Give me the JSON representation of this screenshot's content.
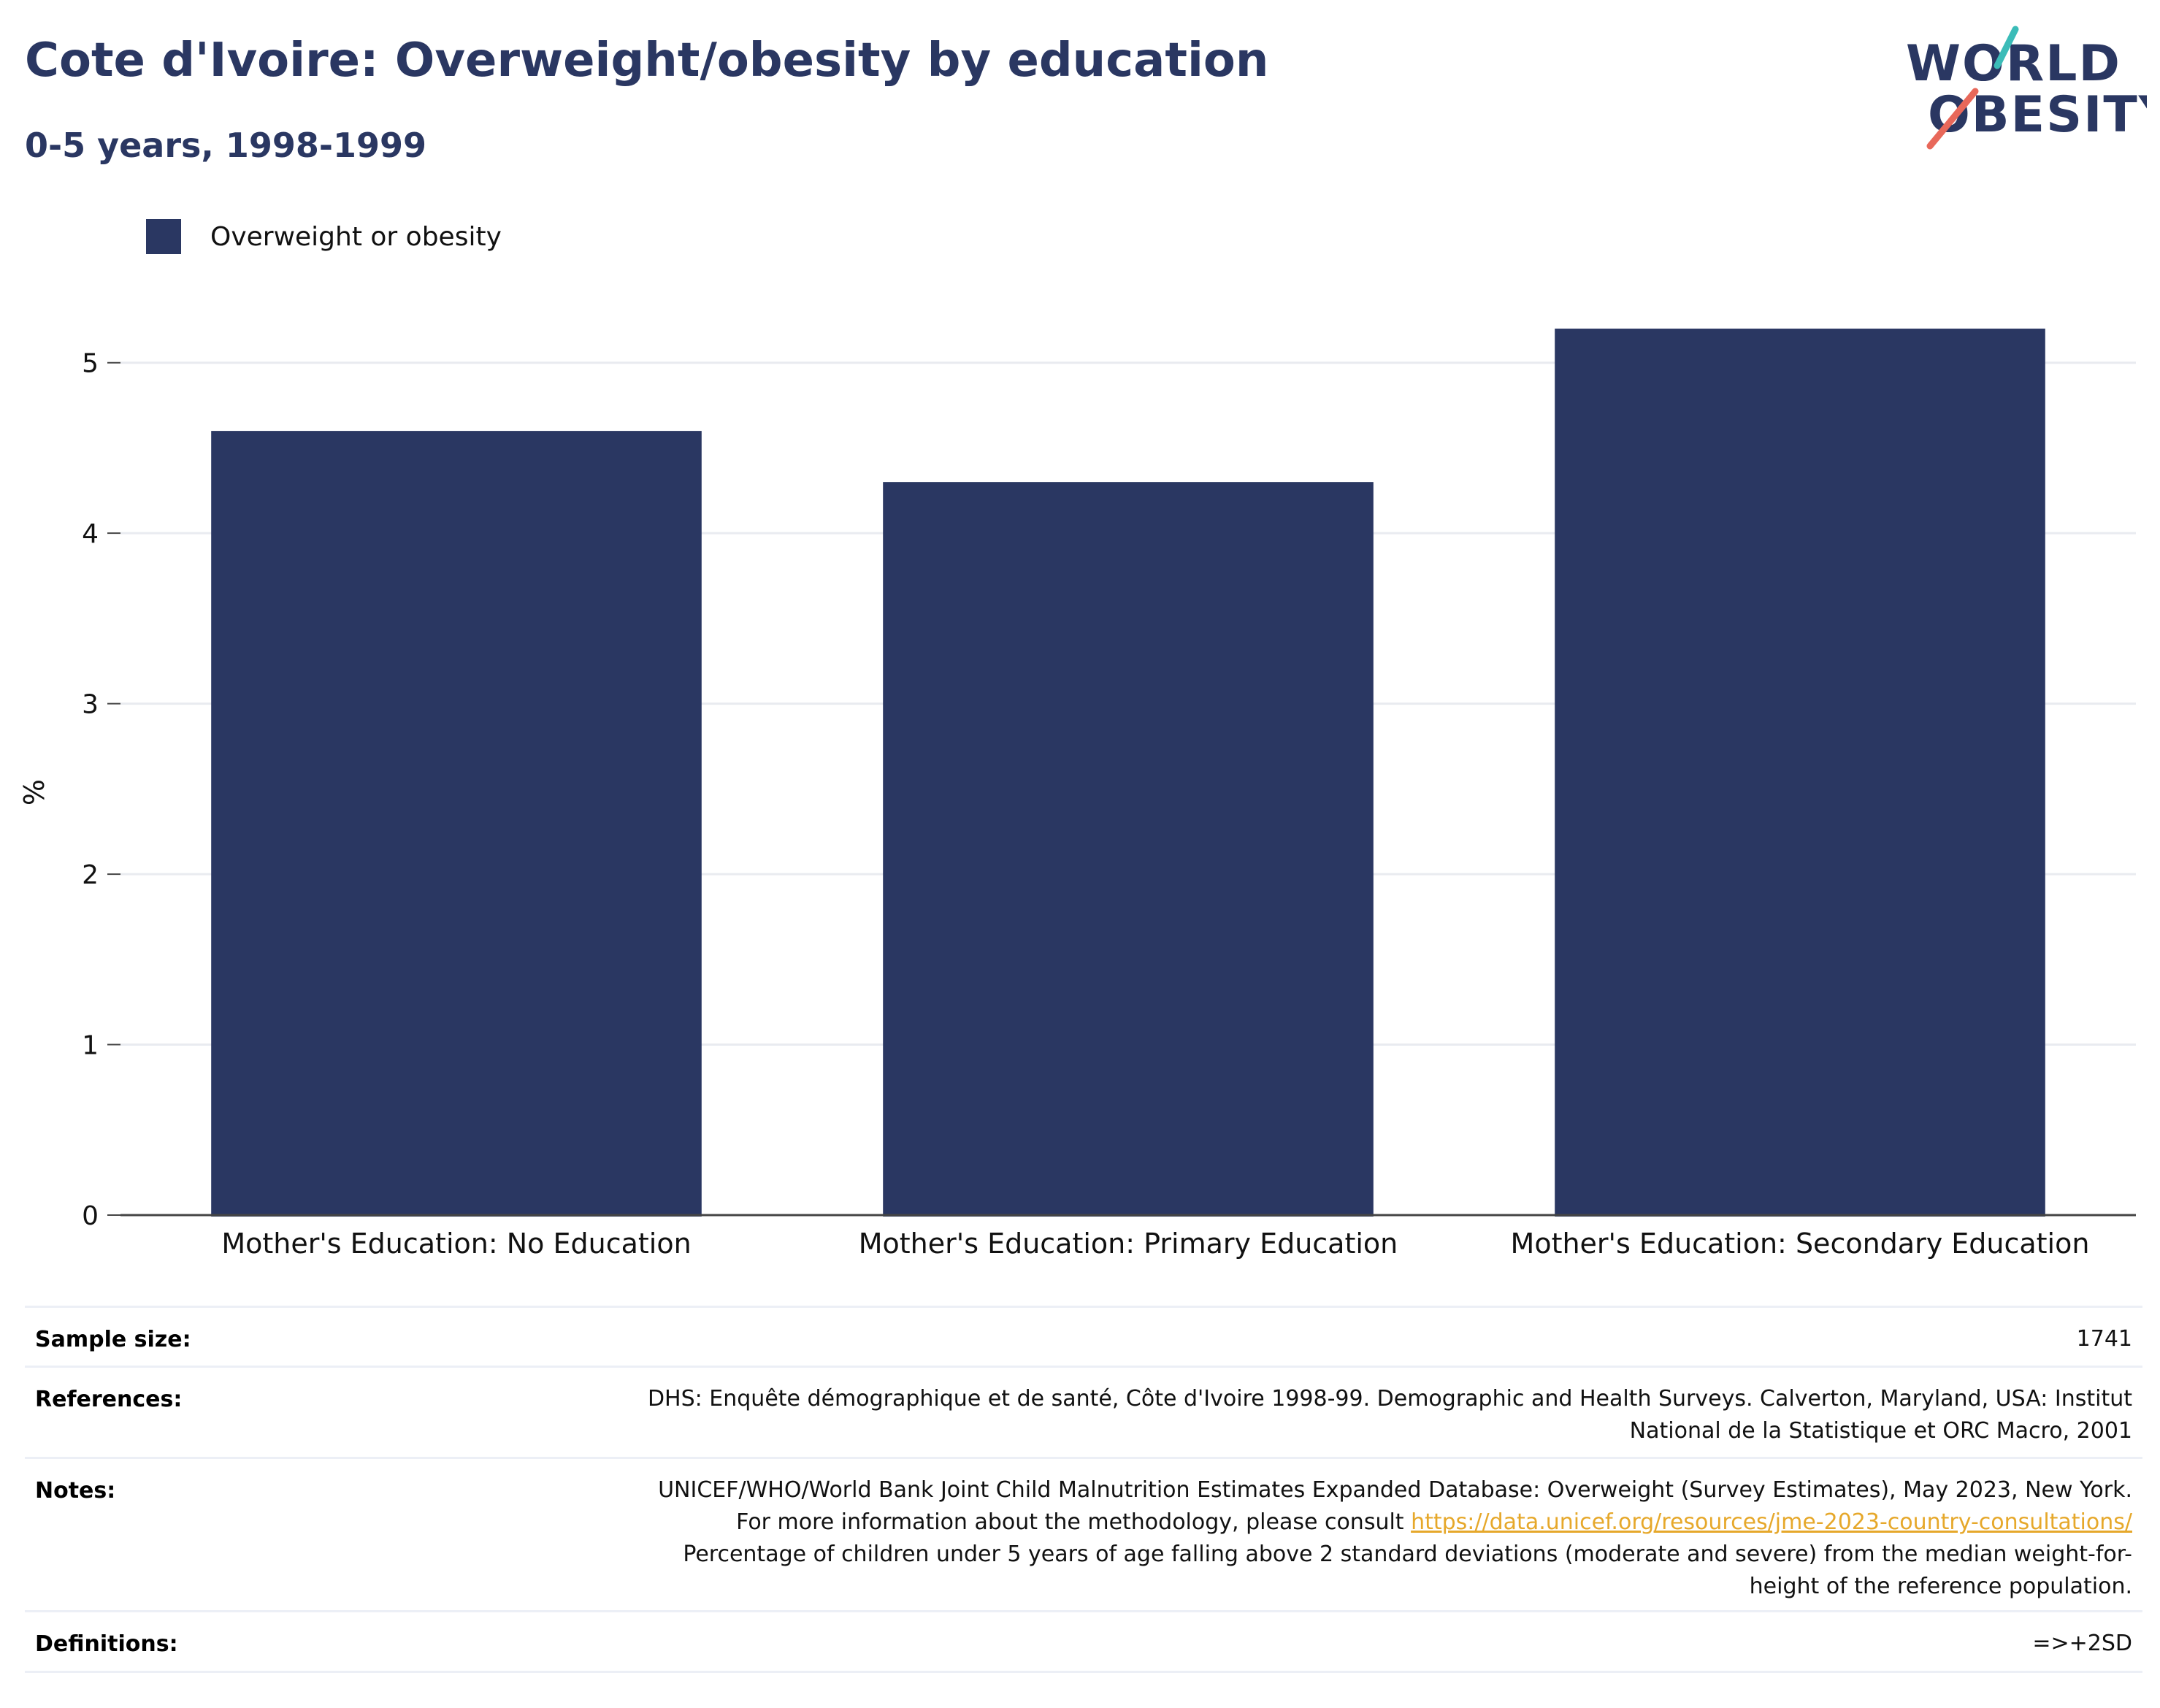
{
  "title": "Cote d'Ivoire: Overweight/obesity by education",
  "subtitle": "0-5 years, 1998-1999",
  "logo": {
    "line1": "WORLD",
    "line2": "OBESITY"
  },
  "colors": {
    "bar": "#2a3762",
    "title": "#2a3762",
    "link": "#e6a82b",
    "logo_teal": "#3bbcb8",
    "logo_coral": "#e8685a"
  },
  "chart_data": {
    "type": "bar",
    "categories": [
      "Mother's Education: No Education",
      "Mother's Education: Primary Education",
      "Mother's Education: Secondary Education"
    ],
    "series": [
      {
        "name": "Overweight or obesity",
        "values": [
          4.6,
          4.3,
          5.2
        ]
      }
    ],
    "title": "Cote d'Ivoire: Overweight/obesity by education",
    "subtitle": "0-5 years, 1998-1999",
    "xlabel": "",
    "ylabel": "%",
    "ylim": [
      0,
      5.5
    ],
    "yticks": [
      0,
      1,
      2,
      3,
      4,
      5
    ],
    "grid": true,
    "legend": "top-left"
  },
  "info": {
    "sample_size_label": "Sample size:",
    "sample_size_value": "1741",
    "references_label": "References:",
    "references_value": "DHS: Enquête démographique et de santé, Côte d'Ivoire 1998-99. Demographic and Health Surveys. Calverton, Maryland, USA: Institut National de la Statistique et ORC Macro, 2001",
    "notes_label": "Notes:",
    "notes_text1": "UNICEF/WHO/World Bank Joint Child Malnutrition Estimates Expanded Database: Overweight (Survey Estimates), May 2023, New York. For more information about the methodology, please consult ",
    "notes_link": "https://data.unicef.org/resources/jme-2023-country-consultations/",
    "notes_text2": " Percentage of children under 5 years of age falling above 2 standard deviations (moderate and severe) from the median weight-for-height of the reference population.",
    "definitions_label": "Definitions:",
    "definitions_value": "=>+2SD"
  }
}
